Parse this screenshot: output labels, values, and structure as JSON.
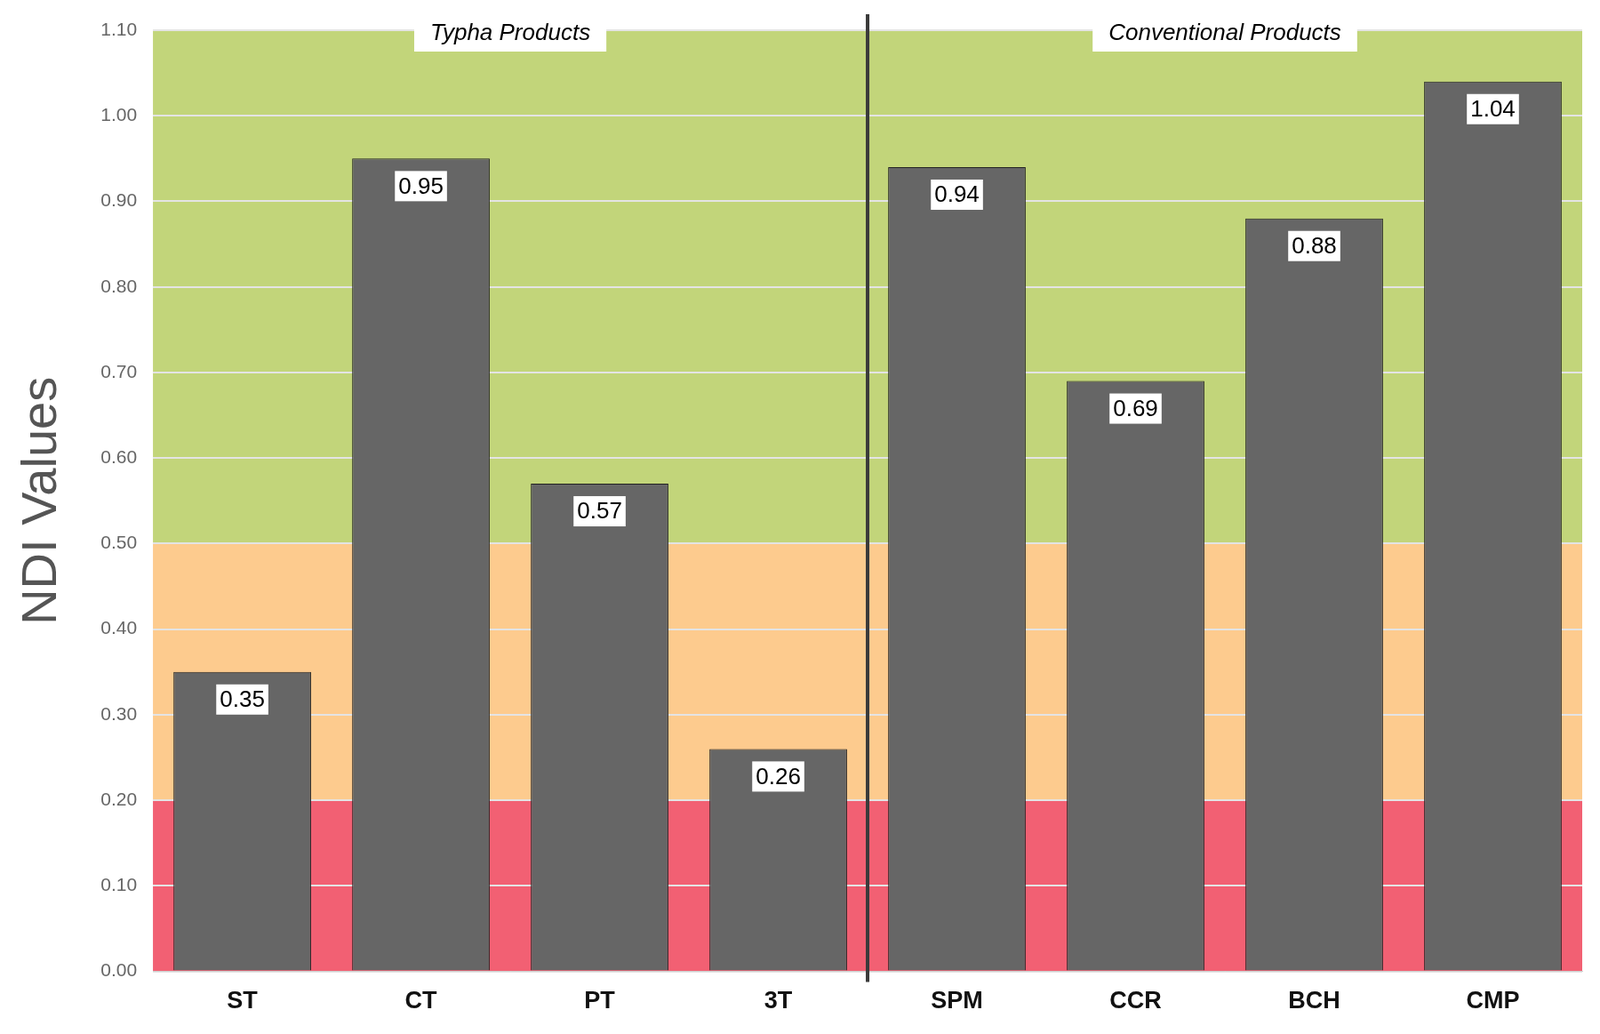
{
  "chart_data": {
    "type": "bar",
    "categories": [
      "ST",
      "CT",
      "PT",
      "3T",
      "SPM",
      "CCR",
      "BCH",
      "CMP"
    ],
    "values": [
      0.35,
      0.95,
      0.57,
      0.26,
      0.94,
      0.69,
      0.88,
      1.04
    ],
    "color": "#666666",
    "y_label": "NDI Values",
    "ylim": [
      0,
      1.1
    ],
    "yticks": [
      {
        "value": 0,
        "label": "0.00"
      },
      {
        "value": 0.1,
        "label": "0.10"
      },
      {
        "value": 0.2,
        "label": "0.20"
      },
      {
        "value": 0.3,
        "label": "0.30"
      },
      {
        "value": 0.4,
        "label": "0.40"
      },
      {
        "value": 0.5,
        "label": "0.50"
      },
      {
        "value": 0.6,
        "label": "0.60"
      },
      {
        "value": 0.7,
        "label": "0.70"
      },
      {
        "value": 0.8,
        "label": "0.80"
      },
      {
        "value": 0.9,
        "label": "0.90"
      },
      {
        "value": 1,
        "label": "1.00"
      },
      {
        "value": 1.1,
        "label": "1.10"
      }
    ],
    "grid": true,
    "data_labels": true,
    "groups": [
      {
        "label": "Typha Products",
        "categories": [
          "ST",
          "CT",
          "PT",
          "3T"
        ]
      },
      {
        "label": "Conventional Products",
        "categories": [
          "SPM",
          "CCR",
          "BCH",
          "CMP"
        ]
      }
    ],
    "bands": [
      {
        "from": 0,
        "to": 0.2,
        "color": "#f26073"
      },
      {
        "from": 0.2,
        "to": 0.5,
        "color": "#fdcb8e"
      },
      {
        "from": 0.5,
        "to": 1.1,
        "color": "#c2d57a"
      }
    ]
  }
}
